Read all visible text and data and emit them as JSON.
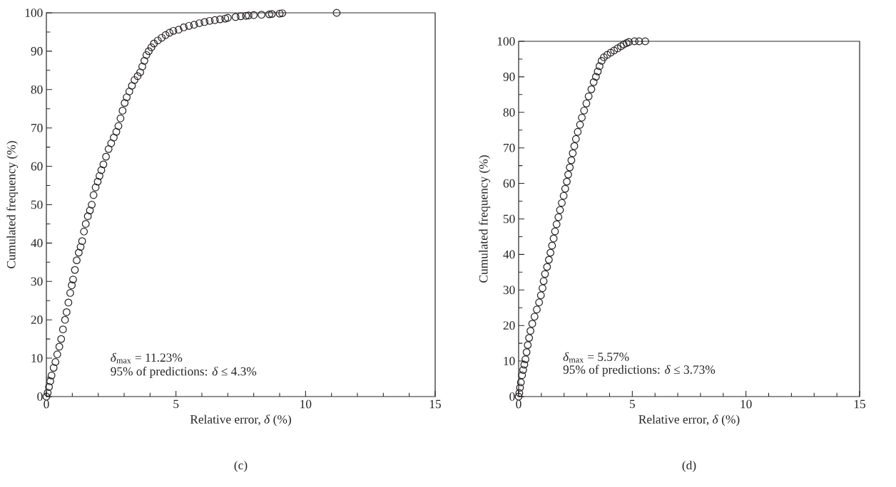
{
  "chart_data": [
    {
      "type": "scatter",
      "xlabel": "Relative error, *δ* (%)",
      "ylabel": "Cumulated frequency (%)",
      "xlim": [
        0,
        15
      ],
      "ylim": [
        0,
        100
      ],
      "xticks": [
        0,
        5,
        10,
        15
      ],
      "yticks": [
        0,
        10,
        20,
        30,
        40,
        50,
        60,
        70,
        80,
        90,
        100
      ],
      "marker": "circle",
      "annotations": [
        "*δ*$_{max}$ = 11.23%",
        "95% of predictions: *δ* ≤ 4.3%",
        "(c)"
      ],
      "series": [
        {
          "color": "#231f20",
          "x": [
            0,
            0.05,
            0.1,
            0.15,
            0.2,
            0.28,
            0.35,
            0.42,
            0.5,
            0.57,
            0.64,
            0.72,
            0.78,
            0.85,
            0.92,
            0.98,
            1.03,
            1.1,
            1.17,
            1.25,
            1.32,
            1.38,
            1.45,
            1.52,
            1.6,
            1.68,
            1.75,
            1.82,
            1.9,
            1.98,
            2.05,
            2.12,
            2.2,
            2.3,
            2.4,
            2.5,
            2.6,
            2.7,
            2.78,
            2.86,
            2.94,
            3.02,
            3.1,
            3.2,
            3.3,
            3.4,
            3.52,
            3.62,
            3.7,
            3.78,
            3.86,
            3.95,
            4.05,
            4.15,
            4.3,
            4.45,
            4.6,
            4.75,
            4.9,
            5.1,
            5.3,
            5.5,
            5.7,
            5.9,
            6.1,
            6.3,
            6.5,
            6.7,
            6.9,
            7.0,
            7.3,
            7.5,
            7.7,
            7.8,
            8.0,
            8.3,
            8.6,
            8.7,
            9.0,
            9.1,
            11.2
          ],
          "values": [
            0,
            1,
            2.5,
            4,
            5.5,
            7.5,
            9,
            11,
            13,
            15,
            17.5,
            20,
            22,
            24.5,
            27,
            29,
            30.5,
            33,
            35.5,
            37.5,
            39,
            40.5,
            43,
            45,
            47,
            48.5,
            50,
            52.5,
            54.5,
            56,
            57.5,
            59,
            60.5,
            62.5,
            64.5,
            66,
            67.5,
            69,
            70.5,
            72.5,
            74.5,
            76.5,
            78,
            79.5,
            81,
            82.5,
            83.5,
            84.5,
            86,
            87.5,
            89,
            90,
            91,
            92,
            92.8,
            93.5,
            94.2,
            94.8,
            95.3,
            95.6,
            96.2,
            96.6,
            96.9,
            97.3,
            97.6,
            97.9,
            98.1,
            98.3,
            98.5,
            98.7,
            98.9,
            99.1,
            99.2,
            99.3,
            99.4,
            99.5,
            99.6,
            99.7,
            99.8,
            99.9,
            100
          ]
        }
      ]
    },
    {
      "type": "scatter",
      "xlabel": "Relative error, *δ* (%)",
      "ylabel": "Cumulated frequency (%)",
      "xlim": [
        0,
        15
      ],
      "ylim": [
        0,
        100
      ],
      "xticks": [
        0,
        5,
        10,
        15
      ],
      "yticks": [
        0,
        10,
        20,
        30,
        40,
        50,
        60,
        70,
        80,
        90,
        100
      ],
      "marker": "circle",
      "annotations": [
        "*δ*$_{max}$ = 5.57%",
        "95% of predictions: *δ* ≤ 3.73%",
        "(d)"
      ],
      "series": [
        {
          "color": "#231f20",
          "x": [
            0,
            0.03,
            0.06,
            0.1,
            0.15,
            0.2,
            0.25,
            0.3,
            0.35,
            0.4,
            0.46,
            0.52,
            0.6,
            0.7,
            0.8,
            0.9,
            0.98,
            1.05,
            1.1,
            1.16,
            1.25,
            1.33,
            1.4,
            1.47,
            1.54,
            1.6,
            1.67,
            1.75,
            1.82,
            1.9,
            1.98,
            2.05,
            2.12,
            2.18,
            2.25,
            2.32,
            2.38,
            2.45,
            2.52,
            2.6,
            2.7,
            2.78,
            2.88,
            2.98,
            3.08,
            3.2,
            3.3,
            3.4,
            3.48,
            3.56,
            3.65,
            3.75,
            3.9,
            4.05,
            4.2,
            4.35,
            4.5,
            4.62,
            4.75,
            4.85,
            5.1,
            5.3,
            5.57
          ],
          "values": [
            0,
            1,
            2.5,
            4,
            6,
            7.5,
            9,
            10.5,
            12.5,
            14.5,
            16.5,
            18.5,
            20.5,
            22.5,
            24.5,
            26.5,
            28.5,
            30.5,
            32.5,
            34.5,
            36.5,
            38.5,
            40.5,
            42.5,
            44.5,
            46.5,
            48.5,
            50.5,
            52.5,
            54.5,
            56.5,
            58.5,
            60.5,
            62.5,
            64.5,
            66.5,
            68.5,
            70.5,
            72.5,
            74.5,
            76.5,
            78.5,
            80.5,
            82.5,
            84.5,
            86.5,
            88.5,
            90,
            91.5,
            93,
            94.5,
            95.5,
            96.2,
            96.8,
            97.4,
            98,
            98.6,
            99.1,
            99.5,
            99.8,
            100,
            100,
            100
          ]
        }
      ]
    }
  ]
}
